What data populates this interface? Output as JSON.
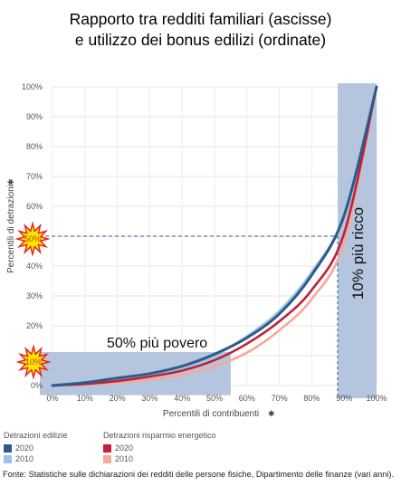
{
  "title_line1": "Rapporto tra redditi familiari (ascisse)",
  "title_line2": "e utilizzo dei bonus edilizi (ordinate)",
  "source": "Fonte: Statistiche sulle dichiarazioni dei redditi delle persone fisiche, Dipartimento delle finanze (vari anni).",
  "annotations": {
    "poorer": "50% più povero",
    "richer": "10% più ricco",
    "burst_top": "50%",
    "burst_bottom": "10%"
  },
  "legend": {
    "group1_title": "Detrazioni edilizie",
    "group2_title": "Detrazioni risparmio energetico",
    "items": [
      {
        "label": "2020",
        "color": "#2b5c8a"
      },
      {
        "label": "2010",
        "color": "#9dc3e6"
      },
      {
        "label": "2020",
        "color": "#c0213a"
      },
      {
        "label": "2010",
        "color": "#f4a99b"
      }
    ]
  },
  "chart_data": {
    "type": "line",
    "xlabel": "Percentili di contribuenti",
    "ylabel": "Percentili di detrazioni",
    "x_ticks": [
      "0%",
      "10%",
      "20%",
      "30%",
      "40%",
      "50%",
      "60%",
      "70%",
      "80%",
      "90%",
      "100%"
    ],
    "y_ticks": [
      "0%",
      "10%",
      "20%",
      "30%",
      "40%",
      "50%",
      "60%",
      "70%",
      "80%",
      "90%",
      "100%"
    ],
    "xlim": [
      0,
      100
    ],
    "ylim": [
      0,
      100
    ],
    "x": [
      0,
      10,
      20,
      30,
      40,
      50,
      60,
      70,
      80,
      90,
      100
    ],
    "series": [
      {
        "name": "Detrazioni edilizie 2020",
        "color": "#2b5c8a",
        "values": [
          0,
          1,
          2.5,
          4,
          6.5,
          10.5,
          16,
          24,
          37,
          57,
          100
        ]
      },
      {
        "name": "Detrazioni edilizie 2010",
        "color": "#9dc3e6",
        "values": [
          0,
          1,
          2.2,
          3.5,
          6,
          10,
          16.5,
          25,
          38,
          57,
          100
        ]
      },
      {
        "name": "Detrazioni risparmio energetico 2020",
        "color": "#c0213a",
        "values": [
          0,
          0.5,
          1.5,
          3,
          5,
          8.5,
          14,
          21.5,
          32,
          51,
          100
        ]
      },
      {
        "name": "Detrazioni risparmio energetico 2010",
        "color": "#f4a99b",
        "values": [
          0,
          0.3,
          1,
          2,
          3.5,
          6.5,
          11,
          18.5,
          29,
          48,
          100
        ]
      }
    ],
    "reference_y": 50,
    "reference_x": 88,
    "highlight_bottom": {
      "x": [
        0,
        55
      ],
      "y": [
        -2,
        10
      ]
    },
    "highlight_right": {
      "x": [
        88,
        100
      ],
      "y": [
        0,
        100
      ]
    },
    "grid": true
  }
}
